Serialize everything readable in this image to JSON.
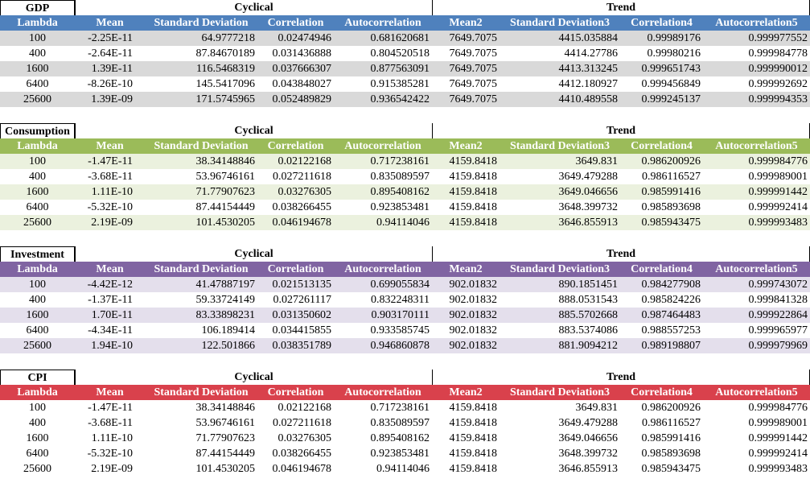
{
  "colors": {
    "gdp": {
      "header": "#4f81bd",
      "band": "#d9d9d9"
    },
    "consumption": {
      "header": "#9bbb59",
      "band": "#ebf1de"
    },
    "investment": {
      "header": "#8064a2",
      "band": "#e4dfec"
    },
    "cpi": {
      "header": "#d9414c",
      "band": "#ffffff"
    }
  },
  "group_labels": {
    "cyclical": "Cyclical",
    "trend": "Trend"
  },
  "column_headers": {
    "gdp": [
      "Lambda",
      "Mean",
      "Standard Deviation",
      "Correlation",
      "Autocorrelation",
      "Mean2",
      "Standard Deviation3",
      "Correlation4",
      "Autocorrelation5"
    ],
    "consumption": [
      "Lambda",
      "Mean",
      "Standard Deviation",
      "Correlation",
      "Autocorrelation",
      "Mean2",
      "Standard Deviation3",
      "Correlation4",
      "Autocorrelation5"
    ],
    "investment": [
      "Lambda",
      "Mean",
      "Standard Deviation",
      "Correlation",
      "Autocorrelation",
      "Mean2",
      "Standard Deviation3",
      "Correlation4",
      "Autocorrelation5"
    ],
    "cpi": [
      "Lambda",
      "Mean",
      "Standard Deviation",
      "Correlation",
      "Autocorrelation",
      "Mean2",
      "Standard Deviation3",
      "Correlation4",
      "Autocorrelation5"
    ]
  },
  "tables": {
    "gdp": {
      "name": "GDP",
      "rows": [
        [
          "100",
          "-2.25E-11",
          "64.9777218",
          "0.02474946",
          "0.681620681",
          "7649.7075",
          "4415.035884",
          "0.99989176",
          "0.999977552"
        ],
        [
          "400",
          "-2.64E-11",
          "87.84670189",
          "0.031436888",
          "0.804520518",
          "7649.7075",
          "4414.27786",
          "0.99980216",
          "0.999984778"
        ],
        [
          "1600",
          "1.39E-11",
          "116.5468319",
          "0.037666307",
          "0.877563091",
          "7649.7075",
          "4413.313245",
          "0.999651743",
          "0.999990012"
        ],
        [
          "6400",
          "-8.26E-10",
          "145.5417096",
          "0.043848027",
          "0.915385281",
          "7649.7075",
          "4412.180927",
          "0.999456849",
          "0.999992692"
        ],
        [
          "25600",
          "1.39E-09",
          "171.5745965",
          "0.052489829",
          "0.936542422",
          "7649.7075",
          "4410.489558",
          "0.999245137",
          "0.999994353"
        ]
      ]
    },
    "consumption": {
      "name": "Consumption",
      "rows": [
        [
          "100",
          "-1.47E-11",
          "38.34148846",
          "0.02122168",
          "0.717238161",
          "4159.8418",
          "3649.831",
          "0.986200926",
          "0.999984776"
        ],
        [
          "400",
          "-3.68E-11",
          "53.96746161",
          "0.027211618",
          "0.835089597",
          "4159.8418",
          "3649.479288",
          "0.986116527",
          "0.999989001"
        ],
        [
          "1600",
          "1.11E-10",
          "71.77907623",
          "0.03276305",
          "0.895408162",
          "4159.8418",
          "3649.046656",
          "0.985991416",
          "0.999991442"
        ],
        [
          "6400",
          "-5.32E-10",
          "87.44154449",
          "0.038266455",
          "0.923853481",
          "4159.8418",
          "3648.399732",
          "0.985893698",
          "0.999992414"
        ],
        [
          "25600",
          "2.19E-09",
          "101.4530205",
          "0.046194678",
          "0.94114046",
          "4159.8418",
          "3646.855913",
          "0.985943475",
          "0.999993483"
        ]
      ]
    },
    "investment": {
      "name": "Investment",
      "rows": [
        [
          "100",
          "-4.42E-12",
          "41.47887197",
          "0.021513135",
          "0.699055834",
          "902.01832",
          "890.1851451",
          "0.984277908",
          "0.999743072"
        ],
        [
          "400",
          "-1.37E-11",
          "59.33724149",
          "0.027261117",
          "0.832248311",
          "902.01832",
          "888.0531543",
          "0.985824226",
          "0.999841328"
        ],
        [
          "1600",
          "1.70E-11",
          "83.33898231",
          "0.031350602",
          "0.903170111",
          "902.01832",
          "885.5702668",
          "0.987464483",
          "0.999922864"
        ],
        [
          "6400",
          "-4.34E-11",
          "106.189414",
          "0.034415855",
          "0.933585745",
          "902.01832",
          "883.5374086",
          "0.988557253",
          "0.999965977"
        ],
        [
          "25600",
          "1.94E-10",
          "122.501866",
          "0.038351789",
          "0.946860878",
          "902.01832",
          "881.9094212",
          "0.989198807",
          "0.999979969"
        ]
      ]
    },
    "cpi": {
      "name": "CPI",
      "rows": [
        [
          "100",
          "-1.47E-11",
          "38.34148846",
          "0.02122168",
          "0.717238161",
          "4159.8418",
          "3649.831",
          "0.986200926",
          "0.999984776"
        ],
        [
          "400",
          "-3.68E-11",
          "53.96746161",
          "0.027211618",
          "0.835089597",
          "4159.8418",
          "3649.479288",
          "0.986116527",
          "0.999989001"
        ],
        [
          "1600",
          "1.11E-10",
          "71.77907623",
          "0.03276305",
          "0.895408162",
          "4159.8418",
          "3649.046656",
          "0.985991416",
          "0.999991442"
        ],
        [
          "6400",
          "-5.32E-10",
          "87.44154449",
          "0.038266455",
          "0.923853481",
          "4159.8418",
          "3648.399732",
          "0.985893698",
          "0.999992414"
        ],
        [
          "25600",
          "2.19E-09",
          "101.4530205",
          "0.046194678",
          "0.94114046",
          "4159.8418",
          "3646.855913",
          "0.985943475",
          "0.999993483"
        ]
      ]
    }
  }
}
